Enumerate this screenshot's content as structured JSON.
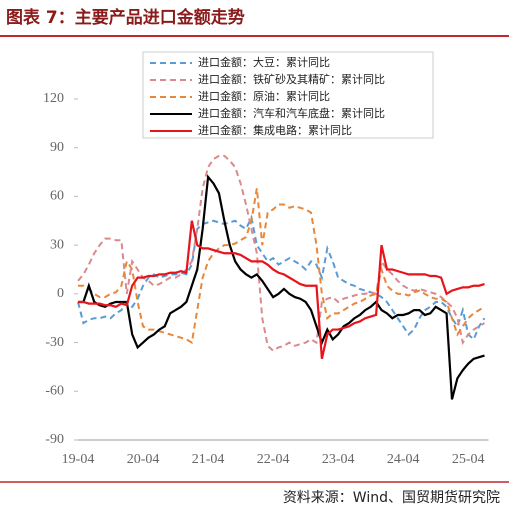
{
  "chart_data": {
    "type": "line",
    "title": "图表 7：主要产品进口金额走势",
    "source": "资料来源：Wind、国贸期货研究院",
    "categories": [
      "19-04",
      null,
      null,
      null,
      null,
      null,
      null,
      null,
      null,
      null,
      null,
      null,
      "20-04",
      null,
      null,
      null,
      null,
      null,
      null,
      null,
      null,
      null,
      null,
      null,
      "21-04",
      null,
      null,
      null,
      null,
      null,
      null,
      null,
      null,
      null,
      null,
      null,
      "22-04",
      null,
      null,
      null,
      null,
      null,
      null,
      null,
      null,
      null,
      null,
      null,
      "23-04",
      null,
      null,
      null,
      null,
      null,
      null,
      null,
      null,
      null,
      null,
      null,
      "24-04",
      null,
      null,
      null,
      null,
      null,
      null,
      null,
      null,
      null,
      null,
      null,
      "25-04",
      null,
      null,
      null
    ],
    "ylim": [
      -90,
      120
    ],
    "yticks": [
      -90,
      -60,
      -30,
      0,
      30,
      60,
      90,
      120
    ],
    "series": [
      {
        "name": "进口金额：大豆：累计同比",
        "color": "#5b9bd5",
        "dashed": true,
        "values": [
          -5,
          -18,
          -16,
          -15,
          -15,
          -14,
          -15,
          -12,
          -10,
          -5,
          -8,
          -3,
          5,
          10,
          12,
          10,
          11,
          12,
          12,
          13,
          12,
          18,
          40,
          43,
          44,
          45,
          44,
          43,
          44,
          45,
          42,
          40,
          47,
          30,
          25,
          20,
          22,
          18,
          20,
          22,
          20,
          18,
          15,
          20,
          18,
          10,
          28,
          20,
          10,
          8,
          6,
          5,
          3,
          2,
          1,
          0,
          -2,
          -5,
          -10,
          -15,
          -20,
          -25,
          -22,
          -15,
          -10,
          -8,
          -5,
          -5,
          -8,
          -15,
          -20,
          -10,
          -25,
          -28,
          -20,
          -15
        ]
      },
      {
        "name": "进口金额：铁矿砂及其精矿：累计同比",
        "color": "#d98a8e",
        "dashed": true,
        "values": [
          8,
          12,
          18,
          25,
          30,
          34,
          34,
          33,
          33,
          0,
          20,
          15,
          10,
          8,
          5,
          6,
          8,
          10,
          10,
          12,
          15,
          20,
          40,
          65,
          78,
          83,
          85,
          85,
          82,
          78,
          68,
          55,
          40,
          25,
          -15,
          -32,
          -35,
          -33,
          -32,
          -30,
          -32,
          -31,
          -30,
          -28,
          -30,
          -5,
          -3,
          -2,
          -5,
          -3,
          -2,
          -1,
          0,
          0,
          1,
          0,
          20,
          15,
          12,
          8,
          5,
          3,
          2,
          3,
          2,
          1,
          0,
          -2,
          -5,
          -8,
          -15,
          -30,
          -25,
          -22,
          -20,
          -18
        ]
      },
      {
        "name": "进口金额：原油：累计同比",
        "color": "#e8873a",
        "dashed": true,
        "values": [
          5,
          5,
          3,
          0,
          -2,
          -2,
          0,
          1,
          5,
          20,
          15,
          -5,
          -20,
          -22,
          -22,
          -23,
          -24,
          -25,
          -26,
          -27,
          -28,
          -30,
          -10,
          10,
          20,
          25,
          28,
          30,
          30,
          31,
          33,
          35,
          45,
          65,
          30,
          50,
          52,
          55,
          55,
          53,
          54,
          53,
          52,
          50,
          30,
          0,
          -15,
          -12,
          -12,
          -10,
          -8,
          -6,
          -5,
          -3,
          -1,
          0,
          15,
          5,
          2,
          0,
          0,
          -1,
          1,
          2,
          0,
          -2,
          -3,
          -3,
          -5,
          -15,
          -25,
          -20,
          -15,
          -12,
          -10,
          -8
        ]
      },
      {
        "name": "进口金额：汽车和汽车底盘：累计同比",
        "color": "#000000",
        "dashed": false,
        "values": [
          -5,
          -5,
          5,
          -5,
          -7,
          -8,
          -6,
          -5,
          -5,
          -5,
          -25,
          -33,
          -30,
          -27,
          -25,
          -22,
          -20,
          -12,
          -10,
          -8,
          -5,
          5,
          15,
          40,
          72,
          68,
          62,
          45,
          30,
          20,
          15,
          12,
          10,
          12,
          8,
          3,
          -2,
          0,
          3,
          0,
          -2,
          -3,
          -5,
          -10,
          -20,
          -30,
          -22,
          -28,
          -25,
          -20,
          -18,
          -15,
          -13,
          -10,
          -8,
          -5,
          -10,
          -12,
          -15,
          -13,
          -13,
          -12,
          -10,
          -10,
          -13,
          -12,
          -8,
          -10,
          -12,
          -65,
          -52,
          -47,
          -43,
          -40,
          -39,
          -38
        ]
      },
      {
        "name": "进口金额：集成电路：累计同比",
        "color": "#e8141c",
        "dashed": false,
        "values": [
          -5,
          -5,
          -6,
          -6,
          -6,
          -7,
          -7,
          -8,
          -6,
          -7,
          5,
          10,
          10,
          11,
          11,
          12,
          12,
          13,
          13,
          14,
          13,
          45,
          30,
          28,
          28,
          27,
          26,
          25,
          25,
          25,
          24,
          22,
          20,
          20,
          20,
          18,
          15,
          13,
          12,
          10,
          8,
          6,
          5,
          5,
          5,
          -40,
          -25,
          -22,
          -22,
          -21,
          -20,
          -18,
          -17,
          -15,
          -14,
          -13,
          30,
          15,
          15,
          14,
          13,
          12,
          12,
          12,
          12,
          11,
          11,
          10,
          0,
          2,
          3,
          4,
          4,
          5,
          5,
          6
        ]
      }
    ]
  }
}
